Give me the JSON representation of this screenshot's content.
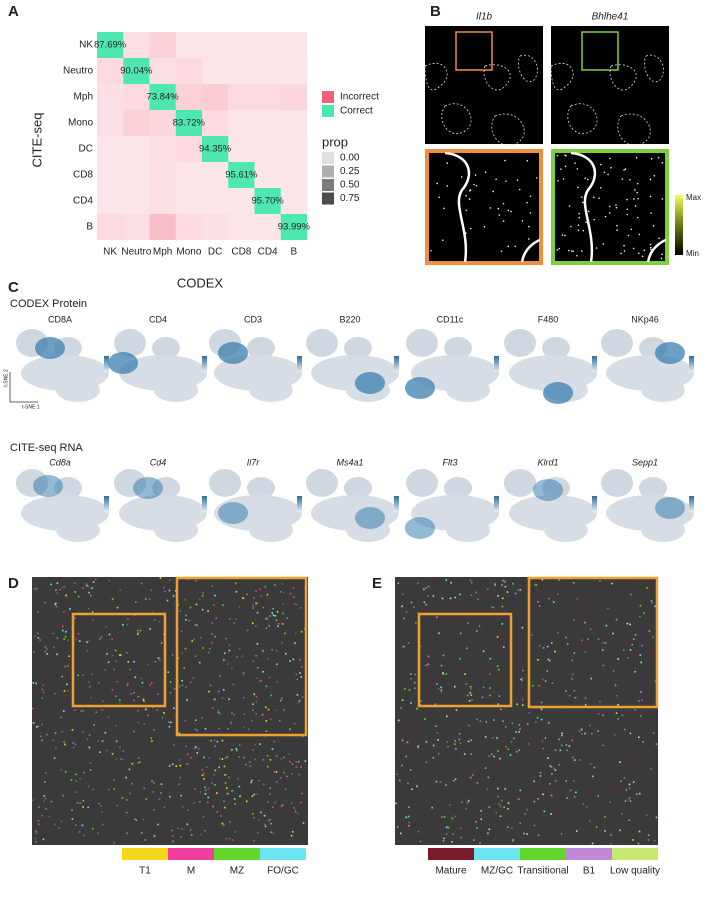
{
  "chart_data": {
    "type": "heatmap",
    "panel_label": "A",
    "x_label": "CODEX",
    "y_label": "CITE-seq",
    "x_categories": [
      "NK",
      "Neutro",
      "Mph",
      "Mono",
      "DC",
      "CD8",
      "CD4",
      "B"
    ],
    "y_categories": [
      "NK",
      "Neutro",
      "Mph",
      "Mono",
      "DC",
      "CD8",
      "CD4",
      "B"
    ],
    "values": [
      [
        0.8769,
        0.02,
        0.05,
        0.01,
        0.01,
        0.01,
        0.01,
        0.01
      ],
      [
        0.03,
        0.9004,
        0.02,
        0.03,
        0.005,
        0.005,
        0.005,
        0.005
      ],
      [
        0.02,
        0.03,
        0.7384,
        0.05,
        0.06,
        0.03,
        0.03,
        0.04
      ],
      [
        0.02,
        0.05,
        0.04,
        0.8372,
        0.03,
        0.01,
        0.01,
        0.01
      ],
      [
        0.005,
        0.01,
        0.02,
        0.03,
        0.9435,
        0.005,
        0.005,
        0.005
      ],
      [
        0.005,
        0.005,
        0.02,
        0.01,
        0.005,
        0.9561,
        0.005,
        0.005
      ],
      [
        0.005,
        0.005,
        0.02,
        0.01,
        0.005,
        0.005,
        0.957,
        0.005
      ],
      [
        0.03,
        0.02,
        0.09,
        0.03,
        0.02,
        0.01,
        0.01,
        0.9399
      ]
    ],
    "value_labels": [
      [
        "87.69%",
        null,
        null,
        null,
        null,
        null,
        null,
        null
      ],
      [
        null,
        "90.04%",
        null,
        null,
        null,
        null,
        null,
        null
      ],
      [
        null,
        null,
        "73.84%",
        null,
        null,
        null,
        null,
        null
      ],
      [
        null,
        null,
        null,
        "83.72%",
        null,
        null,
        null,
        null
      ],
      [
        null,
        null,
        null,
        null,
        "94.35%",
        null,
        null,
        null
      ],
      [
        null,
        null,
        null,
        null,
        null,
        "95.61%",
        null,
        null
      ],
      [
        null,
        null,
        null,
        null,
        null,
        null,
        "95.70%",
        null
      ],
      [
        null,
        null,
        null,
        null,
        null,
        null,
        null,
        "93.99%"
      ]
    ],
    "fill_legend": [
      {
        "name": "Incorrect",
        "color": "#f0607a"
      },
      {
        "name": "Correct",
        "color": "#4de8b0"
      }
    ],
    "prop_legend": {
      "title": "prop",
      "ticks": [
        {
          "value": 0,
          "label": "0.00"
        },
        {
          "value": 0.25,
          "label": "0.25"
        },
        {
          "value": 0.5,
          "label": "0.50"
        },
        {
          "value": 0.75,
          "label": "0.75"
        }
      ]
    }
  },
  "panel_b": {
    "label": "B",
    "genes": [
      "Il1b",
      "Bhlhe41"
    ],
    "colorbar": {
      "max": "Max",
      "min": "Min"
    }
  },
  "panel_c": {
    "label": "C",
    "protein_title": "CODEX Protein",
    "proteins": [
      "CD8A",
      "CD4",
      "CD3",
      "B220",
      "CD11c",
      "F480",
      "NKp46"
    ],
    "rna_title": "CITE-seq RNA",
    "rna": [
      "Cd8a",
      "Cd4",
      "Il7r",
      "Ms4a1",
      "Flt3",
      "Klrd1",
      "Sepp1"
    ],
    "axis_y": "t-SNE 2",
    "axis_x": "t-SNE 1"
  },
  "panel_d": {
    "label": "D",
    "legend": [
      {
        "name": "T1",
        "color": "#f5d81a"
      },
      {
        "name": "M",
        "color": "#f03c9c"
      },
      {
        "name": "MZ",
        "color": "#62d62a"
      },
      {
        "name": "FO/GC",
        "color": "#6be6f0"
      }
    ]
  },
  "panel_e": {
    "label": "E",
    "legend": [
      {
        "name": "Mature",
        "color": "#7b1a2a"
      },
      {
        "name": "MZ/GC",
        "color": "#6be6f0"
      },
      {
        "name": "Transitional",
        "color": "#62d62a"
      },
      {
        "name": "B1",
        "color": "#c08ad8"
      },
      {
        "name": "Low quality",
        "color": "#c9e870"
      }
    ]
  }
}
